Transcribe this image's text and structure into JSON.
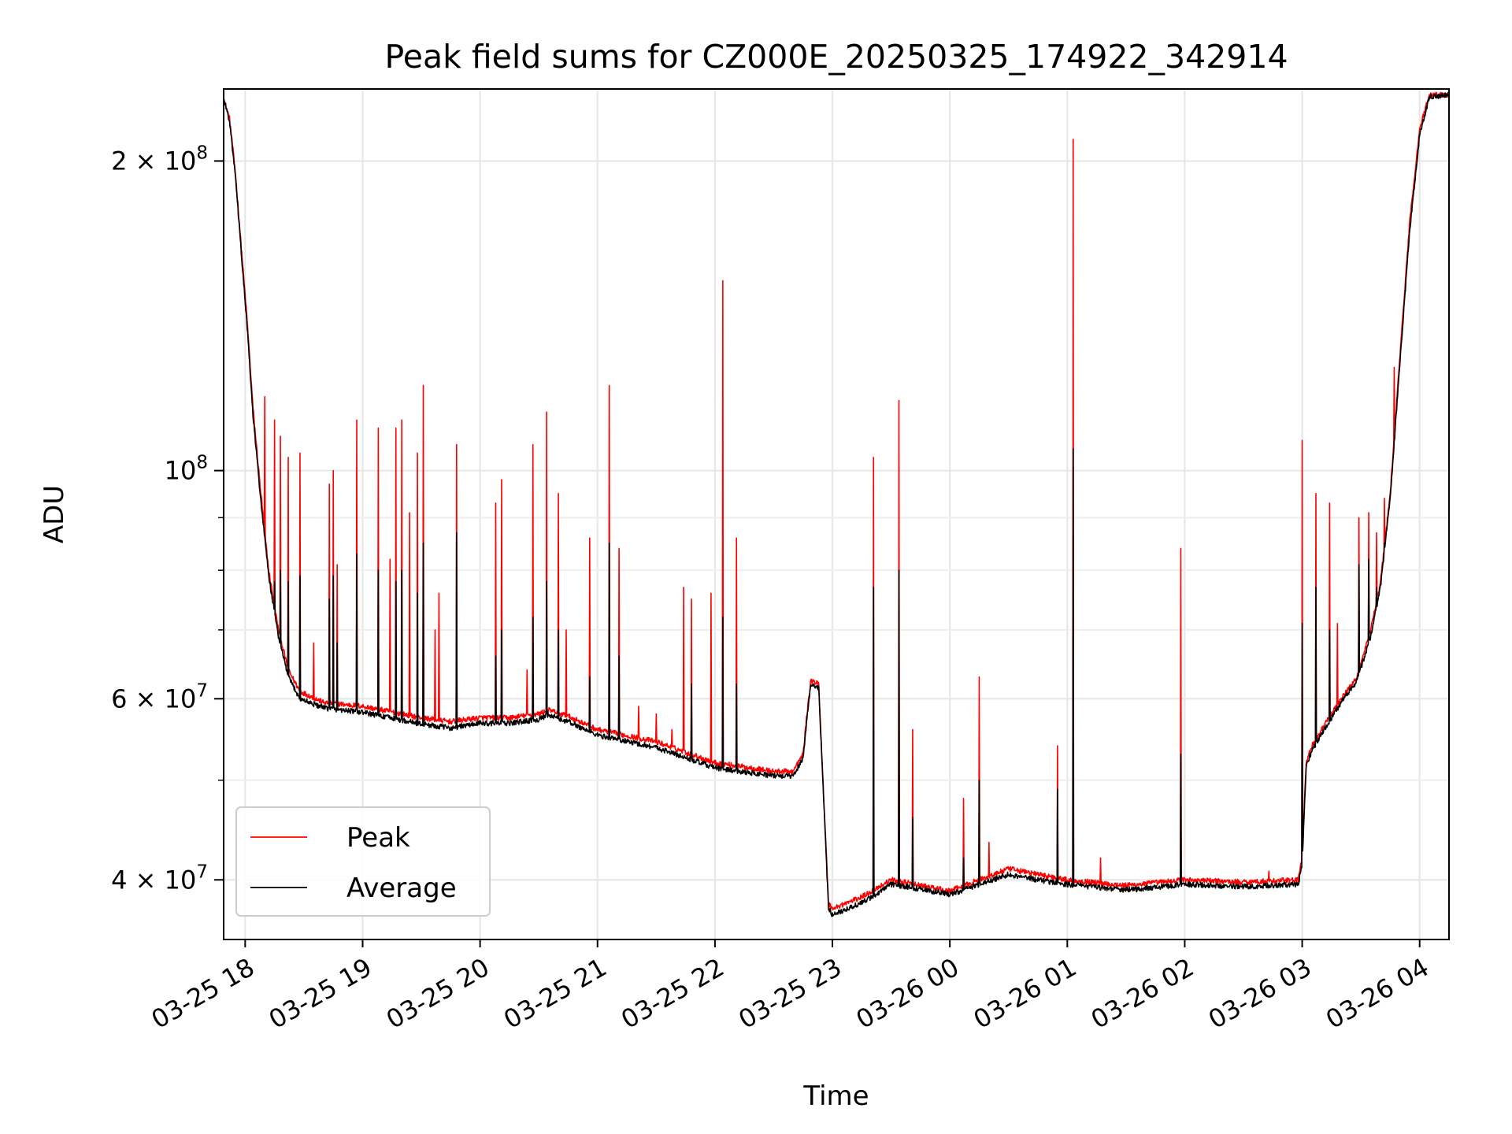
{
  "chart_data": {
    "type": "line",
    "title": "Peak field sums for CZ000E_20250325_174922_342914",
    "xlabel": "Time",
    "ylabel": "ADU",
    "y_scale": "log",
    "grid": true,
    "legend_position": "lower-left",
    "ylim": [
      35000000,
      235000000
    ],
    "xlim": [
      "2025-03-25 17:49",
      "2025-03-26 04:15"
    ],
    "x_ticks": [
      {
        "time": "2025-03-25 18:00",
        "label": "03-25 18"
      },
      {
        "time": "2025-03-25 19:00",
        "label": "03-25 19"
      },
      {
        "time": "2025-03-25 20:00",
        "label": "03-25 20"
      },
      {
        "time": "2025-03-25 21:00",
        "label": "03-25 21"
      },
      {
        "time": "2025-03-25 22:00",
        "label": "03-25 22"
      },
      {
        "time": "2025-03-25 23:00",
        "label": "03-25 23"
      },
      {
        "time": "2025-03-26 00:00",
        "label": "03-26 00"
      },
      {
        "time": "2025-03-26 01:00",
        "label": "03-26 01"
      },
      {
        "time": "2025-03-26 02:00",
        "label": "03-26 02"
      },
      {
        "time": "2025-03-26 03:00",
        "label": "03-26 03"
      },
      {
        "time": "2025-03-26 04:00",
        "label": "03-26 04"
      }
    ],
    "y_ticks_major": [
      {
        "value": 40000000,
        "mantissa": "4",
        "exp": "7"
      },
      {
        "value": 60000000,
        "mantissa": "6",
        "exp": "7"
      },
      {
        "value": 100000000,
        "mantissa": "",
        "exp": "8"
      },
      {
        "value": 200000000,
        "mantissa": "2",
        "exp": "8"
      }
    ],
    "y_ticks_minor": [
      50000000,
      70000000,
      80000000,
      90000000
    ],
    "legend": [
      {
        "label": "Peak",
        "color": "#ff0000"
      },
      {
        "label": "Average",
        "color": "#000000"
      }
    ],
    "series": [
      {
        "name": "Peak",
        "color": "#ff0000",
        "baseline": [
          [
            "2025-03-25 17:49",
            230000000
          ],
          [
            "2025-03-25 17:52",
            220000000
          ],
          [
            "2025-03-25 17:55",
            195000000
          ],
          [
            "2025-03-25 17:58",
            165000000
          ],
          [
            "2025-03-25 18:01",
            140000000
          ],
          [
            "2025-03-25 18:04",
            115000000
          ],
          [
            "2025-03-25 18:08",
            95000000
          ],
          [
            "2025-03-25 18:12",
            80000000
          ],
          [
            "2025-03-25 18:17",
            70000000
          ],
          [
            "2025-03-25 18:22",
            64000000
          ],
          [
            "2025-03-25 18:28",
            61000000
          ],
          [
            "2025-03-25 18:40",
            59500000
          ],
          [
            "2025-03-25 19:00",
            59000000
          ],
          [
            "2025-03-25 19:30",
            57500000
          ],
          [
            "2025-03-25 19:45",
            57000000
          ],
          [
            "2025-03-25 20:00",
            57500000
          ],
          [
            "2025-03-25 20:15",
            57500000
          ],
          [
            "2025-03-25 20:30",
            58000000
          ],
          [
            "2025-03-25 20:35",
            58500000
          ],
          [
            "2025-03-25 20:45",
            57700000
          ],
          [
            "2025-03-25 21:00",
            56000000
          ],
          [
            "2025-03-25 21:30",
            54500000
          ],
          [
            "2025-03-25 22:00",
            52000000
          ],
          [
            "2025-03-25 22:30",
            51000000
          ],
          [
            "2025-03-25 22:40",
            51000000
          ],
          [
            "2025-03-25 22:45",
            53000000
          ],
          [
            "2025-03-25 22:47",
            58000000
          ],
          [
            "2025-03-25 22:49",
            62500000
          ],
          [
            "2025-03-25 22:53",
            62000000
          ],
          [
            "2025-03-25 22:58",
            38000000
          ],
          [
            "2025-03-25 23:00",
            37500000
          ],
          [
            "2025-03-25 23:15",
            38500000
          ],
          [
            "2025-03-25 23:25",
            39500000
          ],
          [
            "2025-03-25 23:30",
            40000000
          ],
          [
            "2025-03-25 23:45",
            39500000
          ],
          [
            "2025-03-26 00:00",
            39000000
          ],
          [
            "2025-03-26 00:15",
            40000000
          ],
          [
            "2025-03-26 00:30",
            41000000
          ],
          [
            "2025-03-26 00:45",
            40500000
          ],
          [
            "2025-03-26 01:00",
            40000000
          ],
          [
            "2025-03-26 01:30",
            39500000
          ],
          [
            "2025-03-26 02:00",
            40000000
          ],
          [
            "2025-03-26 02:30",
            39800000
          ],
          [
            "2025-03-26 02:58",
            40000000
          ],
          [
            "2025-03-26 03:00",
            42000000
          ],
          [
            "2025-03-26 03:02",
            52000000
          ],
          [
            "2025-03-26 03:05",
            54000000
          ],
          [
            "2025-03-26 03:10",
            56000000
          ],
          [
            "2025-03-26 03:15",
            58000000
          ],
          [
            "2025-03-26 03:20",
            60000000
          ],
          [
            "2025-03-26 03:28",
            63000000
          ],
          [
            "2025-03-26 03:35",
            70000000
          ],
          [
            "2025-03-26 03:40",
            78000000
          ],
          [
            "2025-03-26 03:45",
            95000000
          ],
          [
            "2025-03-26 03:50",
            130000000
          ],
          [
            "2025-03-26 03:55",
            175000000
          ],
          [
            "2025-03-26 04:00",
            215000000
          ],
          [
            "2025-03-26 04:05",
            232000000
          ],
          [
            "2025-03-26 04:15",
            232000000
          ]
        ],
        "spikes": [
          [
            "2025-03-25 18:10",
            118000000
          ],
          [
            "2025-03-25 18:15",
            112000000
          ],
          [
            "2025-03-25 18:18",
            108000000
          ],
          [
            "2025-03-25 18:22",
            103000000
          ],
          [
            "2025-03-25 18:28",
            104000000
          ],
          [
            "2025-03-25 18:35",
            68000000
          ],
          [
            "2025-03-25 18:43",
            97000000
          ],
          [
            "2025-03-25 18:45",
            100000000
          ],
          [
            "2025-03-25 18:47",
            81000000
          ],
          [
            "2025-03-25 18:57",
            112000000
          ],
          [
            "2025-03-25 19:08",
            110000000
          ],
          [
            "2025-03-25 19:14",
            82000000
          ],
          [
            "2025-03-25 19:17",
            110000000
          ],
          [
            "2025-03-25 19:20",
            112000000
          ],
          [
            "2025-03-25 19:24",
            91000000
          ],
          [
            "2025-03-25 19:28",
            104000000
          ],
          [
            "2025-03-25 19:31",
            121000000
          ],
          [
            "2025-03-25 19:37",
            70000000
          ],
          [
            "2025-03-25 19:39",
            76000000
          ],
          [
            "2025-03-25 19:48",
            106000000
          ],
          [
            "2025-03-25 20:08",
            93000000
          ],
          [
            "2025-03-25 20:11",
            98000000
          ],
          [
            "2025-03-25 20:24",
            64000000
          ],
          [
            "2025-03-25 20:27",
            106000000
          ],
          [
            "2025-03-25 20:34",
            114000000
          ],
          [
            "2025-03-25 20:40",
            95000000
          ],
          [
            "2025-03-25 20:44",
            70000000
          ],
          [
            "2025-03-25 20:56",
            86000000
          ],
          [
            "2025-03-25 21:06",
            121000000
          ],
          [
            "2025-03-25 21:11",
            84000000
          ],
          [
            "2025-03-25 21:21",
            59000000
          ],
          [
            "2025-03-25 21:30",
            58000000
          ],
          [
            "2025-03-25 21:38",
            56000000
          ],
          [
            "2025-03-25 21:44",
            77000000
          ],
          [
            "2025-03-25 21:48",
            75000000
          ],
          [
            "2025-03-25 21:58",
            76000000
          ],
          [
            "2025-03-25 22:04",
            153000000
          ],
          [
            "2025-03-25 22:11",
            86000000
          ],
          [
            "2025-03-25 23:21",
            103000000
          ],
          [
            "2025-03-25 23:34",
            117000000
          ],
          [
            "2025-03-25 23:41",
            56000000
          ],
          [
            "2025-03-26 00:07",
            48000000
          ],
          [
            "2025-03-26 00:15",
            63000000
          ],
          [
            "2025-03-26 00:20",
            43500000
          ],
          [
            "2025-03-26 00:55",
            54000000
          ],
          [
            "2025-03-26 01:03",
            210000000
          ],
          [
            "2025-03-26 01:17",
            42000000
          ],
          [
            "2025-03-26 01:58",
            84000000
          ],
          [
            "2025-03-26 02:43",
            40800000
          ],
          [
            "2025-03-26 03:00",
            107000000
          ],
          [
            "2025-03-26 03:07",
            95000000
          ],
          [
            "2025-03-26 03:14",
            93000000
          ],
          [
            "2025-03-26 03:18",
            71000000
          ],
          [
            "2025-03-26 03:29",
            90000000
          ],
          [
            "2025-03-26 03:34",
            91000000
          ],
          [
            "2025-03-26 03:38",
            87000000
          ],
          [
            "2025-03-26 03:42",
            94000000
          ],
          [
            "2025-03-26 03:47",
            126000000
          ],
          [
            "2025-03-26 03:51",
            137000000
          ],
          [
            "2025-03-26 03:55",
            140000000
          ]
        ]
      },
      {
        "name": "Average",
        "color": "#000000",
        "baseline": [
          [
            "2025-03-25 17:49",
            230000000
          ],
          [
            "2025-03-25 17:52",
            219000000
          ],
          [
            "2025-03-25 17:55",
            193000000
          ],
          [
            "2025-03-25 17:58",
            163000000
          ],
          [
            "2025-03-25 18:01",
            138000000
          ],
          [
            "2025-03-25 18:04",
            113000000
          ],
          [
            "2025-03-25 18:08",
            93500000
          ],
          [
            "2025-03-25 18:12",
            79000000
          ],
          [
            "2025-03-25 18:17",
            69000000
          ],
          [
            "2025-03-25 18:22",
            63000000
          ],
          [
            "2025-03-25 18:28",
            60000000
          ],
          [
            "2025-03-25 18:40",
            58800000
          ],
          [
            "2025-03-25 19:00",
            58200000
          ],
          [
            "2025-03-25 19:30",
            56700000
          ],
          [
            "2025-03-25 19:45",
            56200000
          ],
          [
            "2025-03-25 20:00",
            56800000
          ],
          [
            "2025-03-25 20:15",
            56800000
          ],
          [
            "2025-03-25 20:30",
            57300000
          ],
          [
            "2025-03-25 20:35",
            57800000
          ],
          [
            "2025-03-25 20:45",
            57000000
          ],
          [
            "2025-03-25 21:00",
            55300000
          ],
          [
            "2025-03-25 21:30",
            53800000
          ],
          [
            "2025-03-25 22:00",
            51400000
          ],
          [
            "2025-03-25 22:30",
            50500000
          ],
          [
            "2025-03-25 22:40",
            50500000
          ],
          [
            "2025-03-25 22:45",
            52500000
          ],
          [
            "2025-03-25 22:47",
            57500000
          ],
          [
            "2025-03-25 22:49",
            62000000
          ],
          [
            "2025-03-25 22:53",
            61500000
          ],
          [
            "2025-03-25 22:58",
            37500000
          ],
          [
            "2025-03-25 23:00",
            37000000
          ],
          [
            "2025-03-25 23:15",
            38000000
          ],
          [
            "2025-03-25 23:25",
            39000000
          ],
          [
            "2025-03-25 23:30",
            39600000
          ],
          [
            "2025-03-25 23:45",
            39200000
          ],
          [
            "2025-03-26 00:00",
            38700000
          ],
          [
            "2025-03-26 00:15",
            39600000
          ],
          [
            "2025-03-26 00:30",
            40500000
          ],
          [
            "2025-03-26 00:45",
            40000000
          ],
          [
            "2025-03-26 01:00",
            39600000
          ],
          [
            "2025-03-26 01:30",
            39100000
          ],
          [
            "2025-03-26 02:00",
            39600000
          ],
          [
            "2025-03-26 02:30",
            39400000
          ],
          [
            "2025-03-26 02:58",
            39600000
          ],
          [
            "2025-03-26 03:00",
            41500000
          ],
          [
            "2025-03-26 03:02",
            51500000
          ],
          [
            "2025-03-26 03:05",
            53500000
          ],
          [
            "2025-03-26 03:10",
            55500000
          ],
          [
            "2025-03-26 03:15",
            57500000
          ],
          [
            "2025-03-26 03:20",
            59500000
          ],
          [
            "2025-03-26 03:28",
            62500000
          ],
          [
            "2025-03-26 03:35",
            69000000
          ],
          [
            "2025-03-26 03:40",
            77000000
          ],
          [
            "2025-03-26 03:45",
            94000000
          ],
          [
            "2025-03-26 03:50",
            128000000
          ],
          [
            "2025-03-26 03:55",
            172000000
          ],
          [
            "2025-03-26 04:00",
            212000000
          ],
          [
            "2025-03-26 04:05",
            231000000
          ],
          [
            "2025-03-26 04:15",
            232000000
          ]
        ],
        "spikes": [
          [
            "2025-03-25 18:10",
            82000000
          ],
          [
            "2025-03-25 18:15",
            78000000
          ],
          [
            "2025-03-25 18:18",
            80000000
          ],
          [
            "2025-03-25 18:22",
            78000000
          ],
          [
            "2025-03-25 18:28",
            79000000
          ],
          [
            "2025-03-25 18:43",
            75000000
          ],
          [
            "2025-03-25 18:45",
            79000000
          ],
          [
            "2025-03-25 18:47",
            68000000
          ],
          [
            "2025-03-25 18:57",
            83000000
          ],
          [
            "2025-03-25 19:08",
            80000000
          ],
          [
            "2025-03-25 19:17",
            78000000
          ],
          [
            "2025-03-25 19:20",
            80000000
          ],
          [
            "2025-03-25 19:28",
            76000000
          ],
          [
            "2025-03-25 19:31",
            85000000
          ],
          [
            "2025-03-25 19:48",
            87000000
          ],
          [
            "2025-03-25 20:08",
            66000000
          ],
          [
            "2025-03-25 20:11",
            70000000
          ],
          [
            "2025-03-25 20:27",
            72000000
          ],
          [
            "2025-03-25 20:34",
            78000000
          ],
          [
            "2025-03-25 20:40",
            70000000
          ],
          [
            "2025-03-25 20:56",
            63000000
          ],
          [
            "2025-03-25 21:06",
            85000000
          ],
          [
            "2025-03-25 21:11",
            66000000
          ],
          [
            "2025-03-25 21:48",
            62000000
          ],
          [
            "2025-03-25 22:04",
            72000000
          ],
          [
            "2025-03-25 22:11",
            62000000
          ],
          [
            "2025-03-25 23:21",
            77000000
          ],
          [
            "2025-03-25 23:34",
            80000000
          ],
          [
            "2025-03-25 23:41",
            46000000
          ],
          [
            "2025-03-26 00:07",
            42000000
          ],
          [
            "2025-03-26 00:15",
            50000000
          ],
          [
            "2025-03-26 00:55",
            49000000
          ],
          [
            "2025-03-26 01:03",
            105000000
          ],
          [
            "2025-03-26 01:58",
            53000000
          ],
          [
            "2025-03-26 03:00",
            71000000
          ],
          [
            "2025-03-26 03:07",
            77000000
          ],
          [
            "2025-03-26 03:14",
            70000000
          ],
          [
            "2025-03-26 03:29",
            81000000
          ],
          [
            "2025-03-26 03:34",
            82000000
          ],
          [
            "2025-03-26 03:38",
            77000000
          ],
          [
            "2025-03-26 03:42",
            85000000
          ]
        ]
      }
    ]
  }
}
